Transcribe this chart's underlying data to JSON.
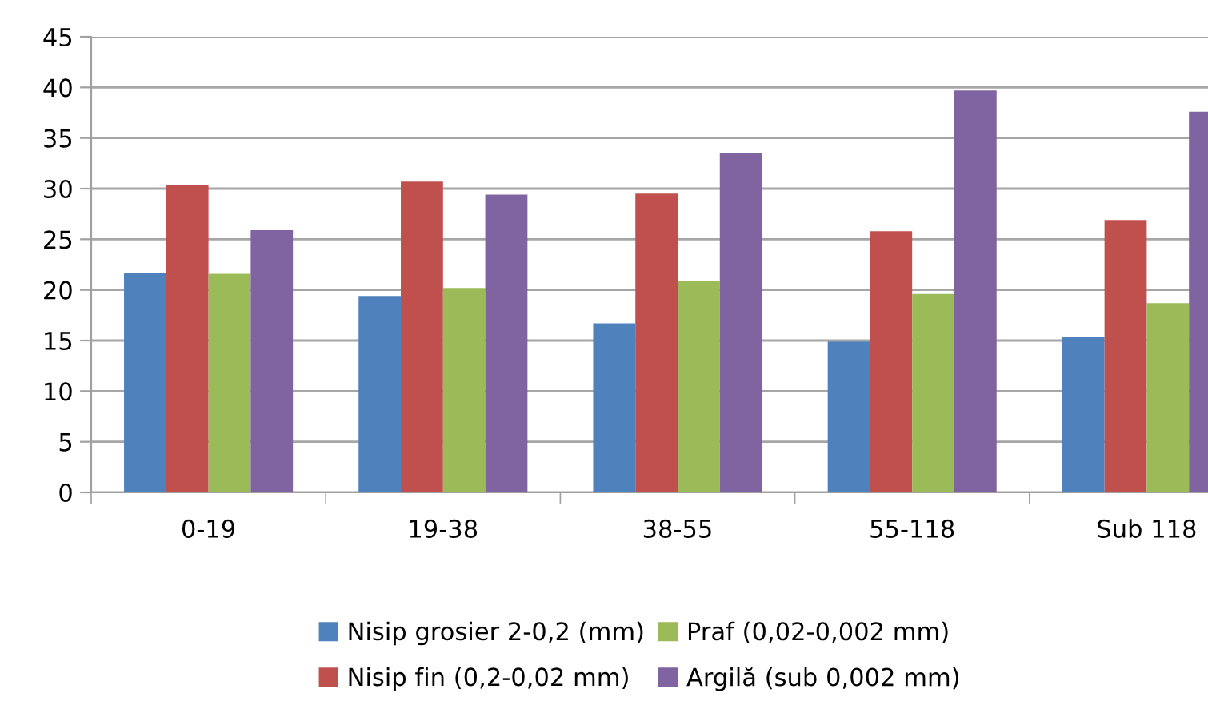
{
  "chart_data": {
    "type": "bar",
    "categories": [
      "0-19",
      "19-38",
      "38-55",
      "55-118",
      "Sub 118"
    ],
    "series": [
      {
        "name": "Nisip grosier 2-0,2 (mm)",
        "color": "#4f81bd",
        "values": [
          21.7,
          19.4,
          16.7,
          14.9,
          15.4
        ]
      },
      {
        "name": "Nisip fin (0,2-0,02 mm)",
        "color": "#c0504d",
        "values": [
          30.4,
          30.7,
          29.5,
          25.8,
          26.9
        ]
      },
      {
        "name": "Praf (0,02-0,002 mm)",
        "color": "#9bbb59",
        "values": [
          21.6,
          20.2,
          20.9,
          19.6,
          18.7
        ]
      },
      {
        "name": "Argilă (sub 0,002 mm)",
        "color": "#8064a2",
        "values": [
          25.9,
          29.4,
          33.5,
          39.7,
          37.6
        ]
      }
    ],
    "ylim": [
      0,
      45
    ],
    "yticks": [
      0,
      5,
      10,
      15,
      20,
      25,
      30,
      35,
      40,
      45
    ],
    "grid": "y",
    "legend": "bottom"
  }
}
